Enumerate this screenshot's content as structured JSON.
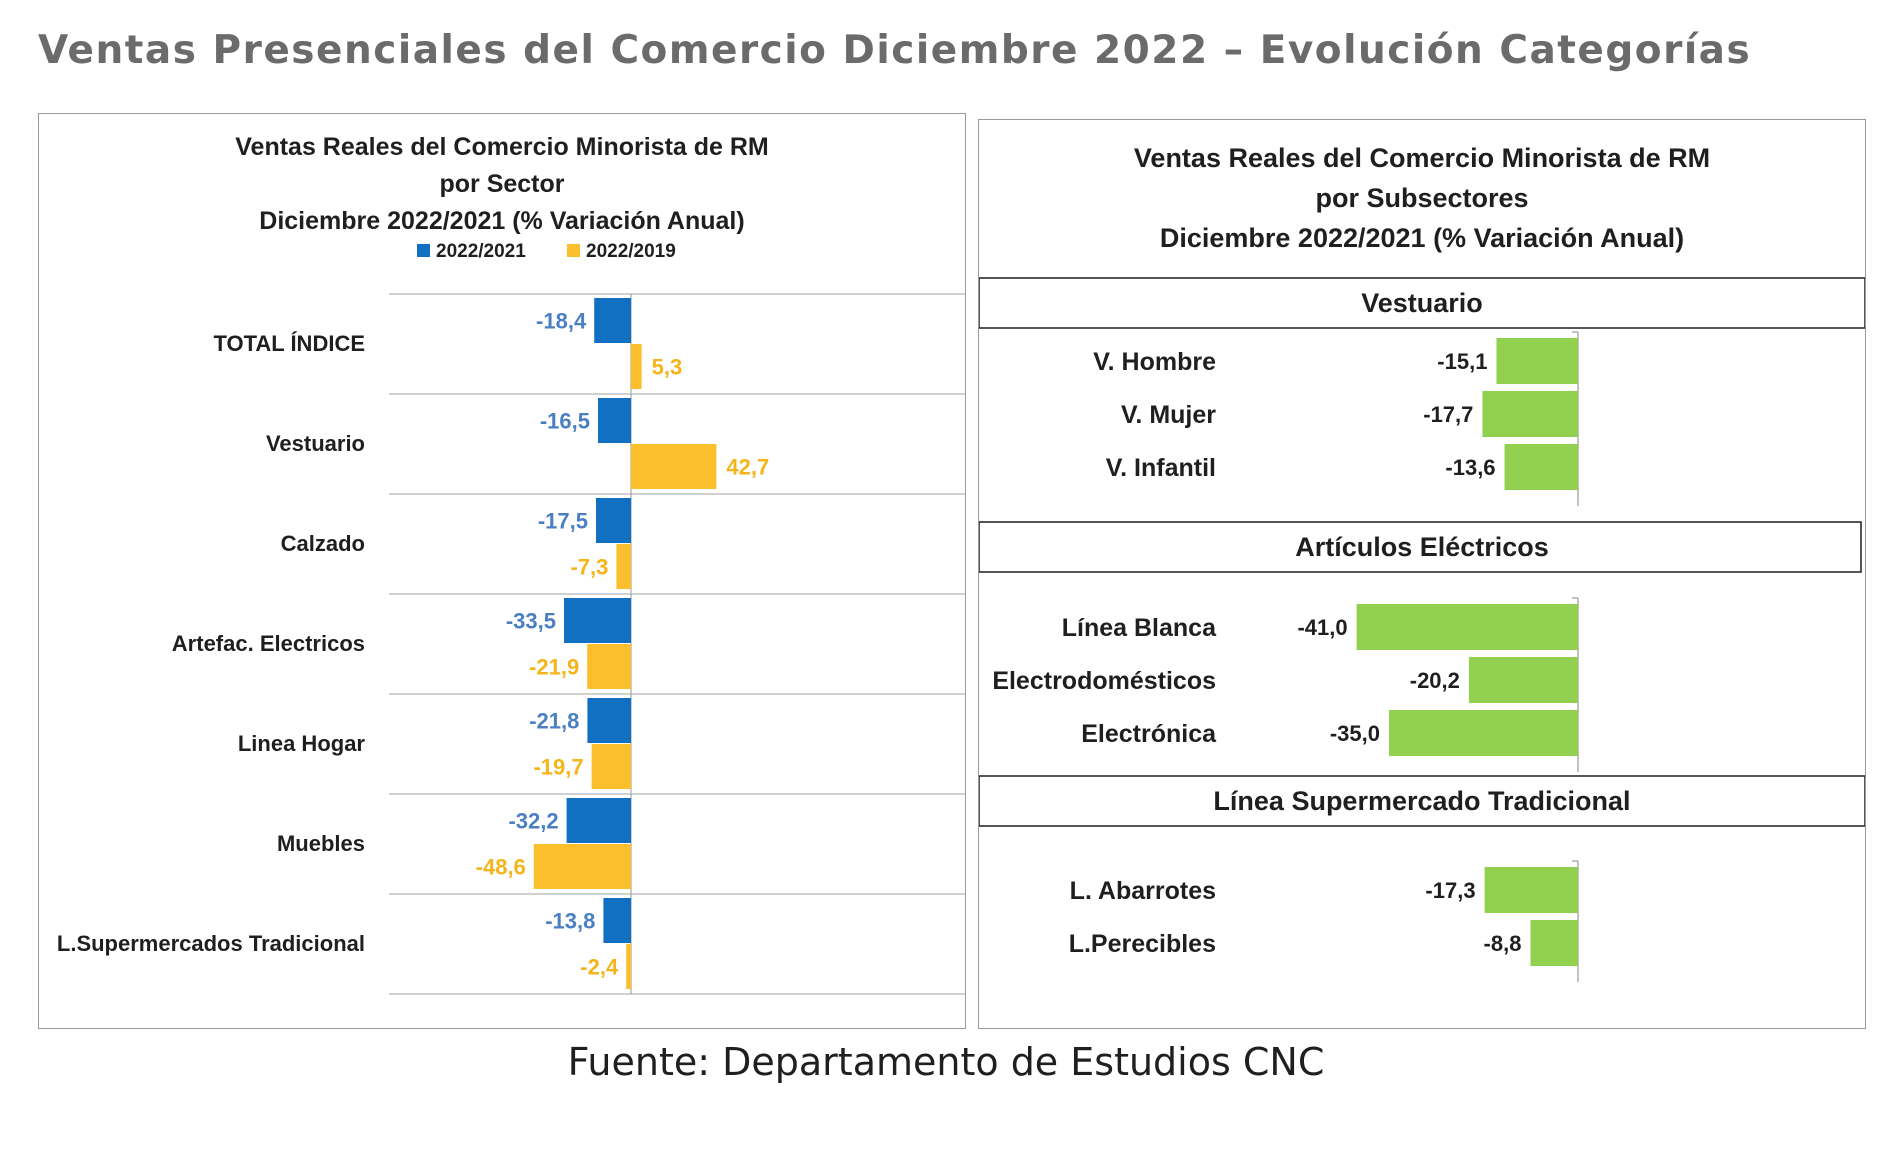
{
  "page_title": "Ventas Presenciales del Comercio Diciembre 2022 – Evolución Categorías",
  "footer": "Fuente: Departamento de Estudios CNC",
  "colors": {
    "series_2021": "#1170c2",
    "series_2019": "#fbbf2e",
    "subsector_bar": "#92d050",
    "label_2021": "#4a7fc1",
    "label_2019": "#f5b51a"
  },
  "chart_data": [
    {
      "type": "bar",
      "orientation": "horizontal",
      "title": "Ventas Reales del Comercio Minorista de RM\npor Sector\nDiciembre 2022/2021 (% Variación Anual)",
      "legend": [
        "2022/2021",
        "2022/2019"
      ],
      "legend_position": "top",
      "categories": [
        "TOTAL ÍNDICE",
        "Vestuario",
        "Calzado",
        "Artefac. Electricos",
        "Linea Hogar",
        "Muebles",
        "L.Supermercados Tradicional"
      ],
      "series": [
        {
          "name": "2022/2021",
          "values": [
            -18.4,
            -16.5,
            -17.5,
            -33.5,
            -21.8,
            -32.2,
            -13.8
          ],
          "labels": [
            "-18,4",
            "-16,5",
            "-17,5",
            "-33,5",
            "-21,8",
            "-32,2",
            "-13,8"
          ]
        },
        {
          "name": "2022/2019",
          "values": [
            5.3,
            42.7,
            -7.3,
            -21.9,
            -19.7,
            -48.6,
            -2.4
          ],
          "labels": [
            "5,3",
            "42,7",
            "-7,3",
            "-21,9",
            "-19,7",
            "-48,6",
            "-2,4"
          ]
        }
      ],
      "xlim": [
        -100,
        100
      ],
      "grid": true
    },
    {
      "type": "bar",
      "orientation": "horizontal",
      "title": "Ventas Reales del Comercio Minorista de RM\npor Subsectores\nDiciembre 2022/2021 (% Variación Anual)",
      "xlim": [
        -65,
        0
      ],
      "groups": [
        {
          "name": "Vestuario",
          "categories": [
            "V. Hombre",
            "V. Mujer",
            "V. Infantil"
          ],
          "values": [
            -15.1,
            -17.7,
            -13.6
          ],
          "labels": [
            "-15,1",
            "-17,7",
            "-13,6"
          ]
        },
        {
          "name": "Artículos Eléctricos",
          "categories": [
            "Línea Blanca",
            "Electrodomésticos",
            "Electrónica"
          ],
          "values": [
            -41.0,
            -20.2,
            -35.0
          ],
          "labels": [
            "-41,0",
            "-20,2",
            "-35,0"
          ]
        },
        {
          "name": "Línea Supermercado Tradicional",
          "categories": [
            "L. Abarrotes",
            "L.Perecibles"
          ],
          "values": [
            -17.3,
            -8.8
          ],
          "labels": [
            "-17,3",
            "-8,8"
          ]
        }
      ]
    }
  ]
}
